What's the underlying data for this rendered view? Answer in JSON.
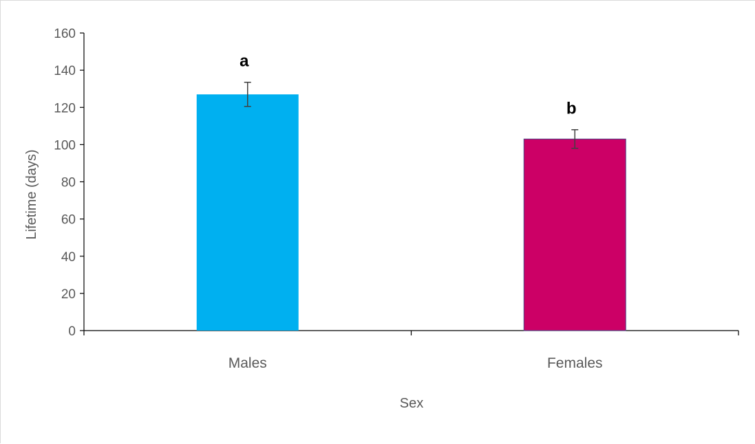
{
  "chart_data": {
    "type": "bar",
    "categories": [
      "Males",
      "Females"
    ],
    "values": [
      127,
      103
    ],
    "errors": [
      6.5,
      5
    ],
    "significance_labels": [
      "a",
      "b"
    ],
    "colors": [
      "#00B0F0",
      "#CC0066"
    ],
    "title": "",
    "xlabel": "Sex",
    "ylabel": "Lifetime (days)",
    "ylim": [
      0,
      160
    ],
    "yticks": [
      0,
      20,
      40,
      60,
      80,
      100,
      120,
      140,
      160
    ],
    "grid": false,
    "legend": "none"
  }
}
